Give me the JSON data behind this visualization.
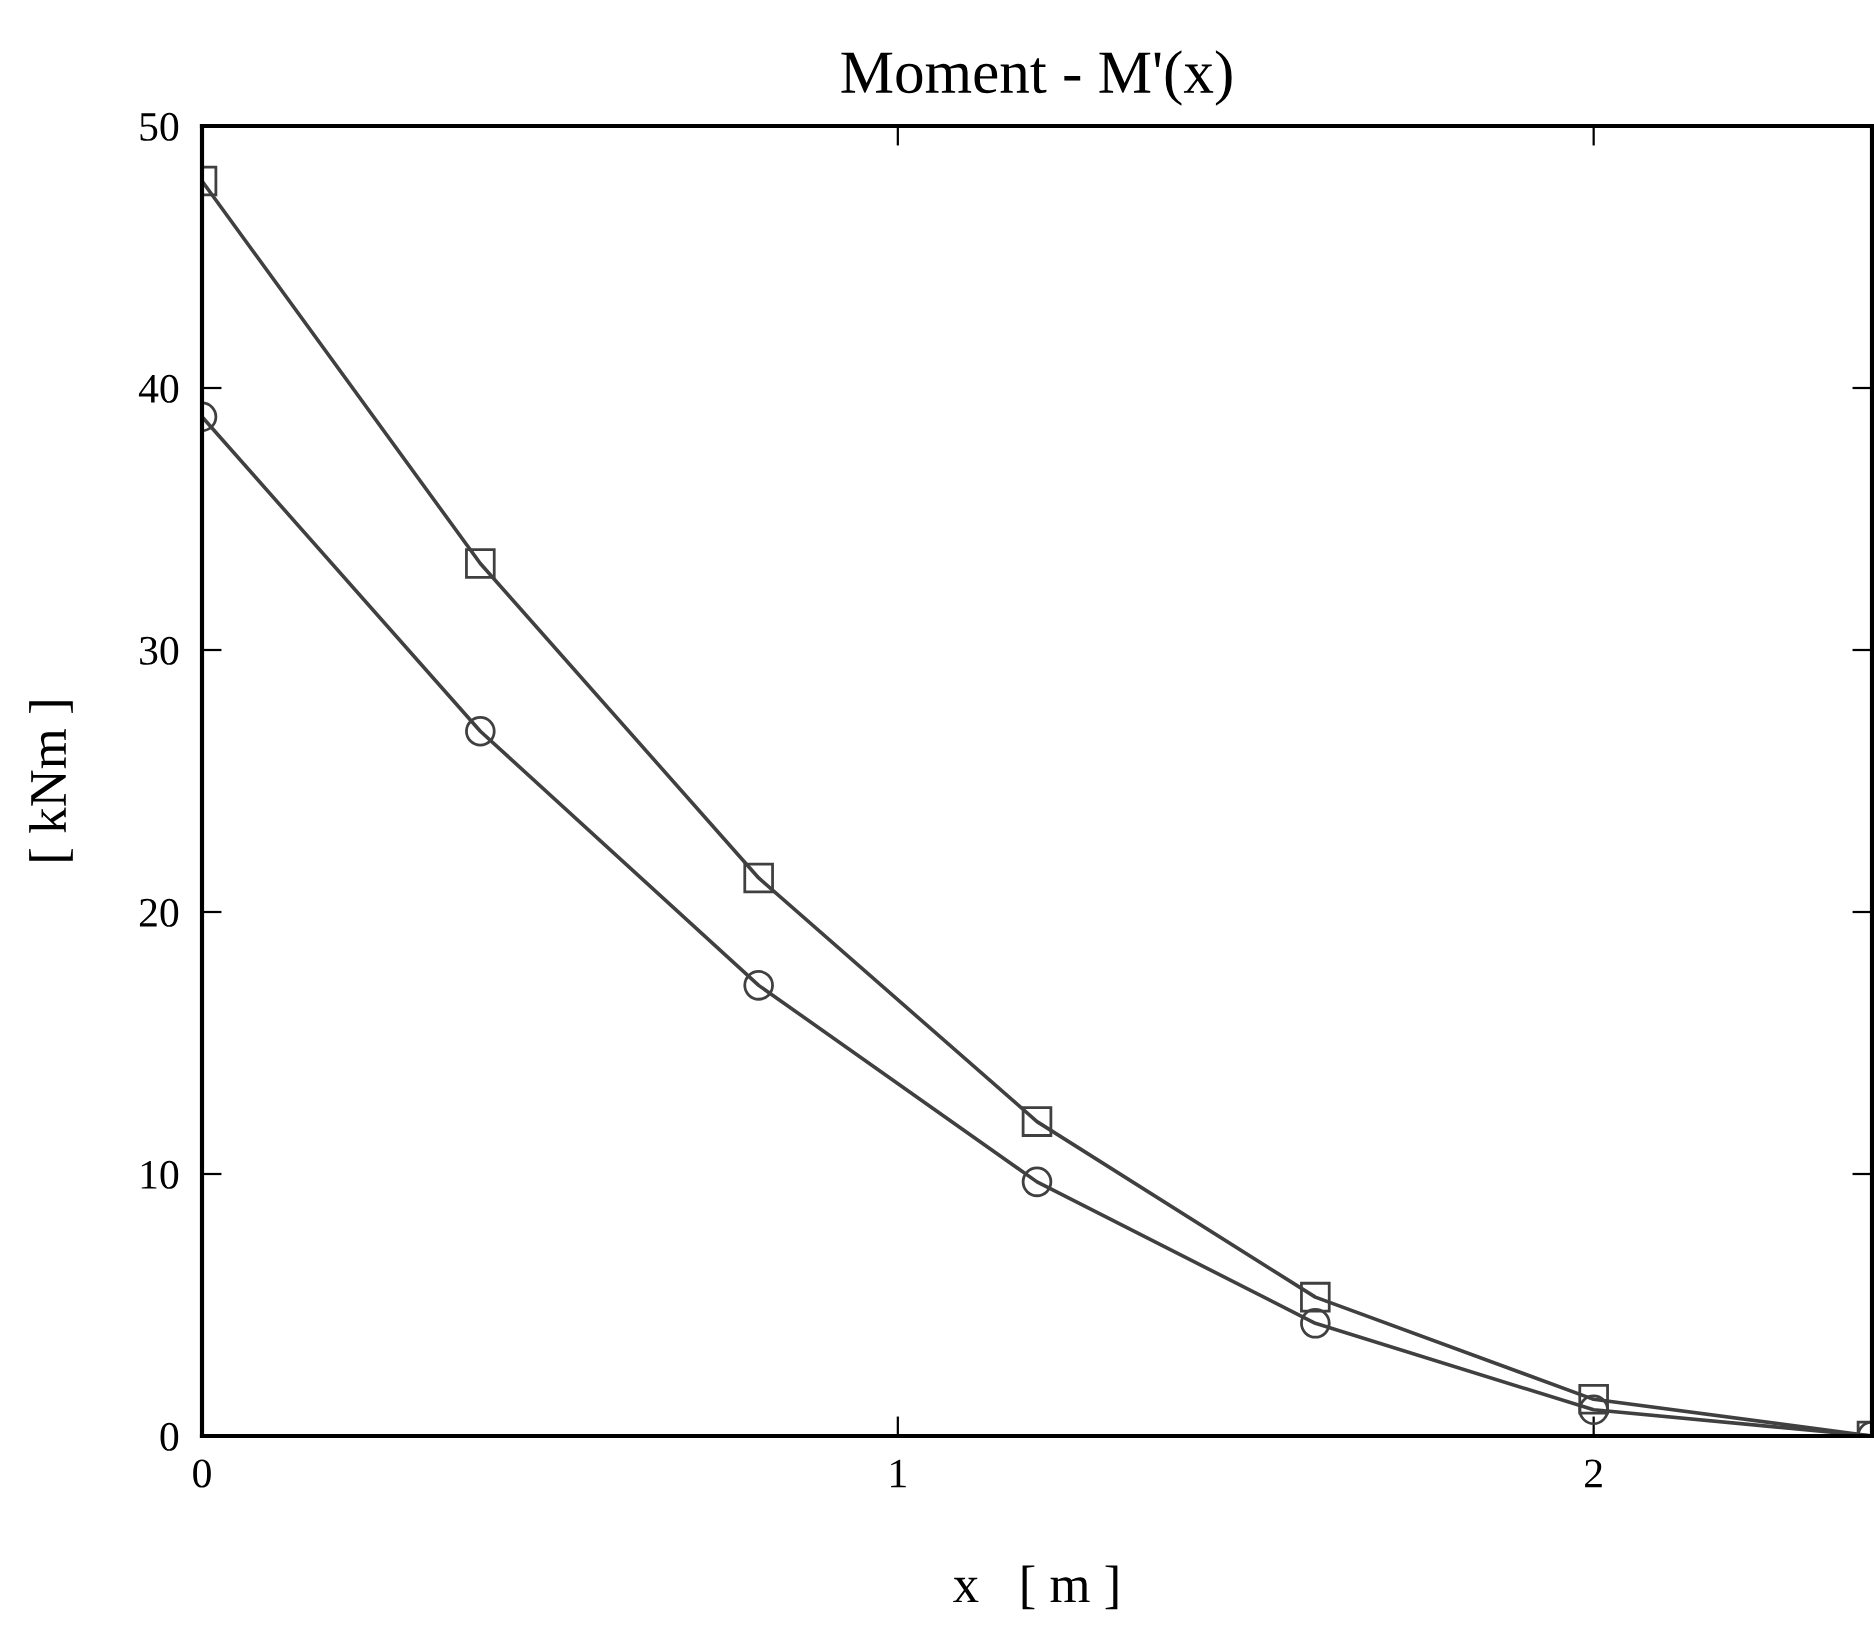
{
  "chart_data": {
    "type": "line",
    "title": "Moment - M'(x)",
    "xlabel": "x   [ m ]",
    "ylabel": "[ kNm ]",
    "x": [
      0,
      0.4,
      0.8,
      1.2,
      1.6,
      2.0,
      2.4
    ],
    "series": [
      {
        "color": "#404040",
        "marker": "square",
        "values": [
          47.9,
          33.3,
          21.3,
          12.0,
          5.3,
          1.4,
          0
        ]
      },
      {
        "color": "#404040",
        "marker": "circle",
        "values": [
          38.9,
          26.9,
          17.2,
          9.7,
          4.3,
          1.0,
          0
        ]
      }
    ],
    "xlim": [
      0,
      2.4
    ],
    "ylim": [
      0,
      50
    ],
    "xticks": [
      0,
      1,
      2
    ],
    "yticks": [
      0,
      10,
      20,
      30,
      40,
      50
    ],
    "grid": false,
    "legend": false,
    "line_style": "solid"
  }
}
